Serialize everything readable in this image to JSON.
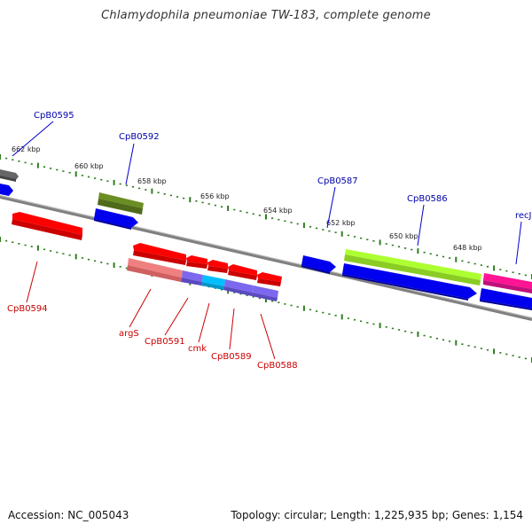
{
  "title": "Chlamydophila pneumoniae TW-183, complete genome",
  "footer": {
    "accession": "Accession: NC_005043",
    "summary": "Topology: circular; Length: 1,225,935 bp; Genes: 1,154"
  },
  "colors": {
    "backbone": "#808080",
    "ticks": "#2e7d1e",
    "forward_label": "#0000aa",
    "reverse_label": "#cc0000"
  },
  "ticks": [
    "662 kbp",
    "660 kbp",
    "658 kbp",
    "656 kbp",
    "654 kbp",
    "652 kbp",
    "650 kbp",
    "648 kbp"
  ],
  "genes": {
    "CpB0595": "CpB0595",
    "CpB0592": "CpB0592",
    "CpB0587": "CpB0587",
    "CpB0586": "CpB0586",
    "recJ": "recJ",
    "CpB0594": "CpB0594",
    "argS": "argS",
    "CpB0591": "CpB0591",
    "cmk": "cmk",
    "CpB0589": "CpB0589",
    "CpB0588": "CpB0588"
  }
}
